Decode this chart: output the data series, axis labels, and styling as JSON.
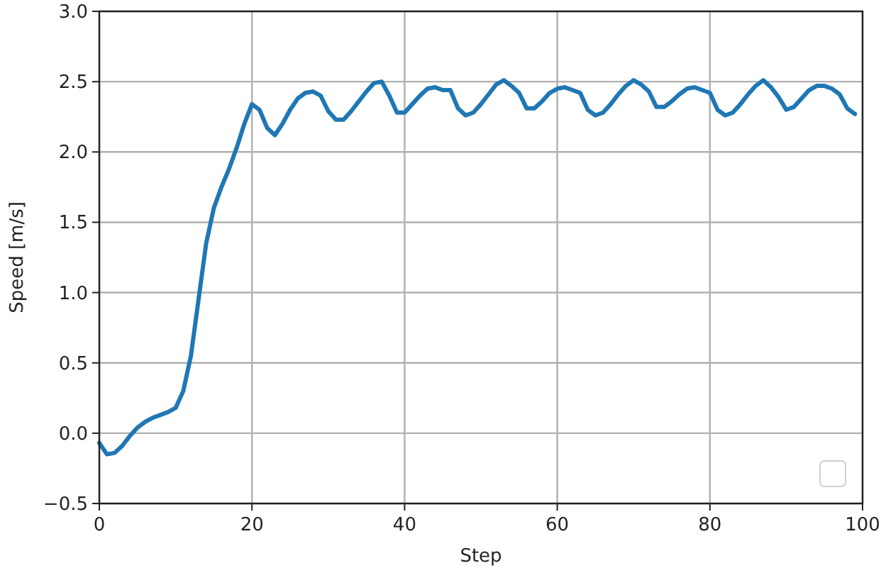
{
  "chart_data": {
    "type": "line",
    "xlabel": "Step",
    "ylabel": "Speed [m/s]",
    "xlim": [
      0,
      100
    ],
    "ylim": [
      -0.5,
      3.0
    ],
    "xticks": [
      0,
      20,
      40,
      60,
      80,
      100
    ],
    "yticks": [
      {
        "value": -0.5,
        "label": "−0.5"
      },
      {
        "value": 0,
        "label": "0.0"
      },
      {
        "value": 0.5,
        "label": "0.5"
      },
      {
        "value": 1,
        "label": "1.0"
      },
      {
        "value": 1.5,
        "label": "1.5"
      },
      {
        "value": 2,
        "label": "2.0"
      },
      {
        "value": 2.5,
        "label": "2.5"
      },
      {
        "value": 3,
        "label": "3.0"
      }
    ],
    "grid": true,
    "series": [
      {
        "color": "#1f77b4",
        "x": [
          0,
          1,
          2,
          3,
          4,
          5,
          6,
          7,
          8,
          9,
          10,
          11,
          12,
          13,
          14,
          15,
          16,
          17,
          18,
          19,
          20,
          21,
          22,
          23,
          24,
          25,
          26,
          27,
          28,
          29,
          30,
          31,
          32,
          33,
          34,
          35,
          36,
          37,
          38,
          39,
          40,
          41,
          42,
          43,
          44,
          45,
          46,
          47,
          48,
          49,
          50,
          51,
          52,
          53,
          54,
          55,
          56,
          57,
          58,
          59,
          60,
          61,
          62,
          63,
          64,
          65,
          66,
          67,
          68,
          69,
          70,
          71,
          72,
          73,
          74,
          75,
          76,
          77,
          78,
          79,
          80,
          81,
          82,
          83,
          84,
          85,
          86,
          87,
          88,
          89,
          90,
          91,
          92,
          93,
          94,
          95,
          96,
          97,
          98,
          99
        ],
        "values": [
          -0.07,
          -0.15,
          -0.14,
          -0.09,
          -0.02,
          0.04,
          0.08,
          0.11,
          0.13,
          0.15,
          0.18,
          0.3,
          0.55,
          0.95,
          1.35,
          1.6,
          1.75,
          1.88,
          2.03,
          2.2,
          2.34,
          2.3,
          2.17,
          2.12,
          2.2,
          2.3,
          2.38,
          2.42,
          2.43,
          2.4,
          2.29,
          2.23,
          2.23,
          2.29,
          2.36,
          2.43,
          2.49,
          2.5,
          2.4,
          2.28,
          2.28,
          2.34,
          2.4,
          2.45,
          2.46,
          2.44,
          2.44,
          2.31,
          2.26,
          2.28,
          2.34,
          2.41,
          2.48,
          2.51,
          2.47,
          2.42,
          2.31,
          2.31,
          2.36,
          2.42,
          2.45,
          2.46,
          2.44,
          2.42,
          2.3,
          2.26,
          2.28,
          2.34,
          2.41,
          2.47,
          2.51,
          2.48,
          2.43,
          2.32,
          2.32,
          2.36,
          2.41,
          2.45,
          2.46,
          2.44,
          2.42,
          2.3,
          2.26,
          2.28,
          2.34,
          2.41,
          2.47,
          2.51,
          2.46,
          2.39,
          2.3,
          2.32,
          2.38,
          2.44,
          2.47,
          2.47,
          2.45,
          2.41,
          2.31,
          2.27
        ]
      }
    ]
  }
}
